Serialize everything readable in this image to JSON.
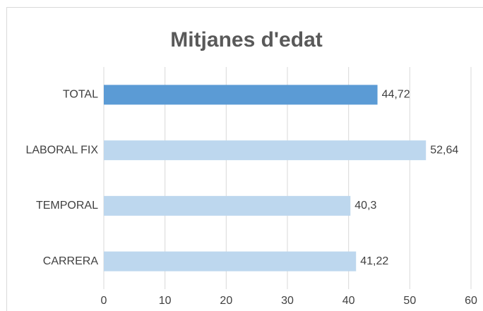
{
  "chart_data": {
    "type": "barh",
    "title": "Mitjanes d'edat",
    "categories": [
      "TOTAL",
      "LABORAL FIX",
      "TEMPORAL",
      "CARRERA"
    ],
    "values": [
      44.72,
      52.64,
      40.3,
      41.22
    ],
    "value_labels": [
      "44,72",
      "52,64",
      "40,3",
      "41,22"
    ],
    "colors": [
      "#5b9bd5",
      "#bdd7ee",
      "#bdd7ee",
      "#bdd7ee"
    ],
    "xlim": [
      0,
      60
    ],
    "xticks": [
      0,
      10,
      20,
      30,
      40,
      50,
      60
    ],
    "grid": true
  }
}
